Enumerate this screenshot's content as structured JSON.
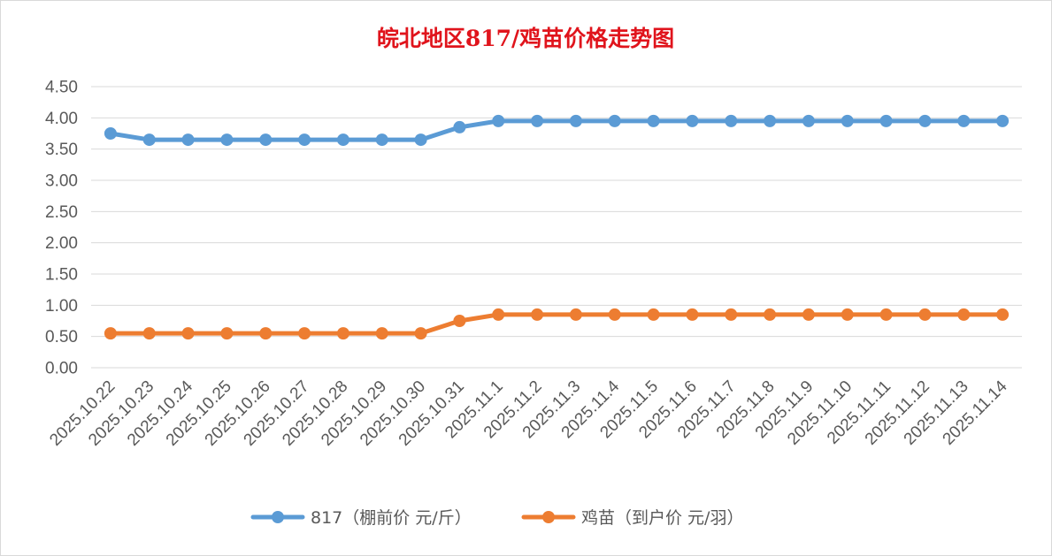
{
  "chart_data": {
    "type": "line",
    "title": "皖北地区817/鸡苗价格走势图",
    "xlabel": "",
    "ylabel": "",
    "ylim": [
      0,
      4.5
    ],
    "ytick_step": 0.5,
    "yticks": [
      "0.00",
      "0.50",
      "1.00",
      "1.50",
      "2.00",
      "2.50",
      "3.00",
      "3.50",
      "4.00",
      "4.50"
    ],
    "grid": true,
    "legend_position": "bottom",
    "categories": [
      "2025.10.22",
      "2025.10.23",
      "2025.10.24",
      "2025.10.25",
      "2025.10.26",
      "2025.10.27",
      "2025.10.28",
      "2025.10.29",
      "2025.10.30",
      "2025.10.31",
      "2025.11.1",
      "2025.11.2",
      "2025.11.3",
      "2025.11.4",
      "2025.11.5",
      "2025.11.6",
      "2025.11.7",
      "2025.11.8",
      "2025.11.9",
      "2025.11.10",
      "2025.11.11",
      "2025.11.12",
      "2025.11.13",
      "2025.11.14"
    ],
    "series": [
      {
        "name": "817（棚前价 元/斤）",
        "color": "#5b9bd5",
        "values": [
          3.75,
          3.65,
          3.65,
          3.65,
          3.65,
          3.65,
          3.65,
          3.65,
          3.65,
          3.85,
          3.95,
          3.95,
          3.95,
          3.95,
          3.95,
          3.95,
          3.95,
          3.95,
          3.95,
          3.95,
          3.95,
          3.95,
          3.95,
          3.95
        ]
      },
      {
        "name": "鸡苗（到户价 元/羽）",
        "color": "#ed7d31",
        "values": [
          0.55,
          0.55,
          0.55,
          0.55,
          0.55,
          0.55,
          0.55,
          0.55,
          0.55,
          0.75,
          0.85,
          0.85,
          0.85,
          0.85,
          0.85,
          0.85,
          0.85,
          0.85,
          0.85,
          0.85,
          0.85,
          0.85,
          0.85,
          0.85
        ]
      }
    ]
  }
}
